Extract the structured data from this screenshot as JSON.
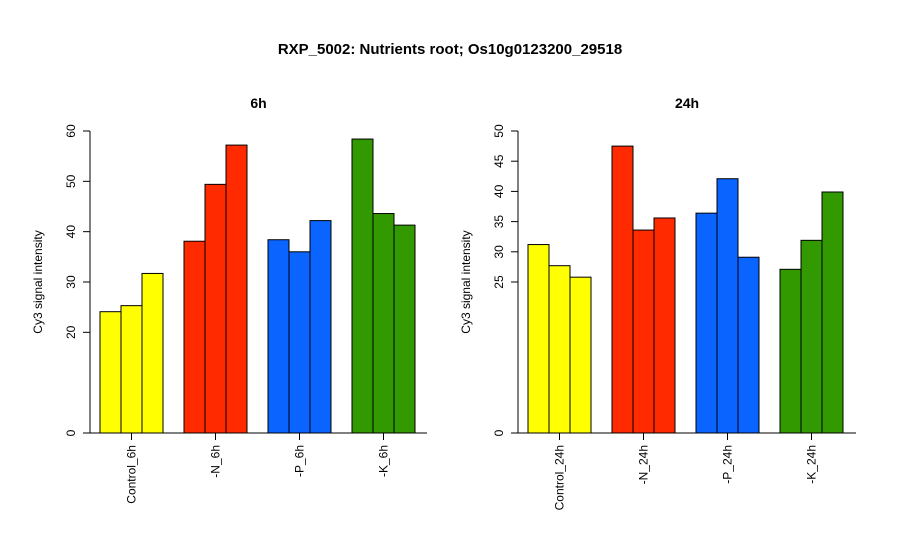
{
  "title": "RXP_5002: Nutrients root; Os10g0123200_29518",
  "chart_data": [
    {
      "type": "bar",
      "title": "6h",
      "ylabel": "Cy3 signal intensity",
      "ylim": [
        0,
        60
      ],
      "yticks": [
        0,
        20,
        30,
        40,
        50,
        60
      ],
      "groups": [
        {
          "label": "Control_6h",
          "color": "#FFFF00",
          "values": [
            24.1,
            25.3,
            31.7
          ]
        },
        {
          "label": "-N_6h",
          "color": "#FF2A00",
          "values": [
            38.1,
            49.4,
            57.2
          ]
        },
        {
          "label": "-P_6h",
          "color": "#0A64FF",
          "values": [
            38.4,
            36.0,
            42.2
          ]
        },
        {
          "label": "-K_6h",
          "color": "#339900",
          "values": [
            58.4,
            43.6,
            41.3
          ]
        }
      ]
    },
    {
      "type": "bar",
      "title": "24h",
      "ylabel": "Cy3 signal intensity",
      "ylim": [
        0,
        50
      ],
      "yticks": [
        0,
        25,
        30,
        35,
        40,
        45,
        50
      ],
      "groups": [
        {
          "label": "Control_24h",
          "color": "#FFFF00",
          "values": [
            31.2,
            27.7,
            25.8
          ]
        },
        {
          "label": "-N_24h",
          "color": "#FF2A00",
          "values": [
            47.5,
            33.6,
            35.6
          ]
        },
        {
          "label": "-P_24h",
          "color": "#0A64FF",
          "values": [
            36.4,
            42.1,
            29.1
          ]
        },
        {
          "label": "-K_24h",
          "color": "#339900",
          "values": [
            27.1,
            31.9,
            39.9
          ]
        }
      ]
    }
  ]
}
